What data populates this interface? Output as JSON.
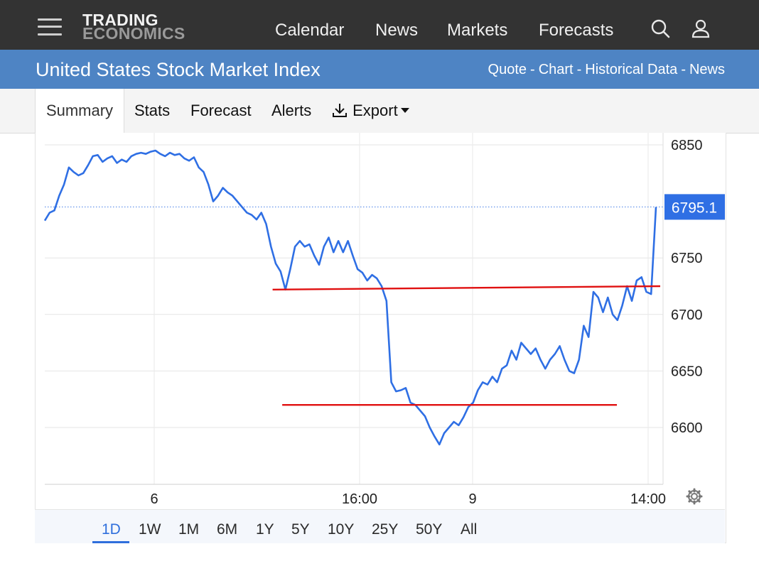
{
  "header": {
    "logo_line1": "TRADING",
    "logo_line2": "ECONOMICS",
    "nav": [
      "Calendar",
      "News",
      "Markets",
      "Forecasts"
    ],
    "icons": [
      "menu-icon",
      "search-icon",
      "user-icon"
    ]
  },
  "title_bar": {
    "title": "United States Stock Market Index",
    "links": [
      "Quote",
      "Chart",
      "Historical Data",
      "News"
    ],
    "link_separator": "-"
  },
  "tabs": {
    "items": [
      "Summary",
      "Stats",
      "Forecast",
      "Alerts",
      "Export"
    ],
    "active": "Summary"
  },
  "ranges": {
    "items": [
      "1D",
      "1W",
      "1M",
      "6M",
      "1Y",
      "5Y",
      "10Y",
      "25Y",
      "50Y",
      "All"
    ],
    "active": "1D"
  },
  "colors": {
    "topbar": "#333333",
    "titlebar": "#4e84c4",
    "line": "#2f6fe4",
    "last_price_badge": "#2f6fe4",
    "trend_lines": "#e01010",
    "active_range": "#2f6fdc"
  },
  "chart_data": {
    "type": "line",
    "title": "",
    "xlabel": "",
    "ylabel": "",
    "x_ticks": [
      "6",
      "16:00",
      "9",
      "14:00"
    ],
    "y_ticks": [
      6600,
      6650,
      6700,
      6750,
      6850
    ],
    "ylim": [
      6550,
      6850
    ],
    "y_axis_side": "right",
    "grid": true,
    "last_value_label": "6795.1",
    "last_value": 6795.1,
    "series": [
      {
        "values": [
          6783,
          6790,
          6792,
          6805,
          6815,
          6830,
          6826,
          6823,
          6825,
          6832,
          6840,
          6841,
          6835,
          6838,
          6840,
          6834,
          6837,
          6835,
          6840,
          6842,
          6843,
          6842,
          6844,
          6845,
          6842,
          6840,
          6843,
          6841,
          6842,
          6838,
          6836,
          6839,
          6830,
          6826,
          6815,
          6800,
          6805,
          6812,
          6808,
          6805,
          6800,
          6795,
          6790,
          6788,
          6784,
          6790,
          6780,
          6760,
          6745,
          6738,
          6722,
          6740,
          6760,
          6765,
          6760,
          6762,
          6752,
          6744,
          6760,
          6768,
          6755,
          6765,
          6755,
          6765,
          6752,
          6740,
          6737,
          6730,
          6735,
          6732,
          6725,
          6712,
          6640,
          6632,
          6633,
          6635,
          6622,
          6620,
          6615,
          6610,
          6600,
          6592,
          6585,
          6595,
          6600,
          6605,
          6602,
          6609,
          6618,
          6622,
          6633,
          6640,
          6638,
          6645,
          6640,
          6652,
          6655,
          6668,
          6660,
          6675,
          6670,
          6665,
          6670,
          6660,
          6652,
          6660,
          6665,
          6672,
          6660,
          6650,
          6648,
          6660,
          6690,
          6680,
          6720,
          6715,
          6702,
          6715,
          6700,
          6695,
          6708,
          6725,
          6712,
          6730,
          6733,
          6720,
          6718,
          6795
        ],
        "last": 6795.1
      }
    ],
    "annotations": [
      {
        "type": "trend_line",
        "from": {
          "x_index": 50,
          "y": 6722
        },
        "to": {
          "x_index": 127,
          "y": 6725
        }
      },
      {
        "type": "horizontal_line",
        "from": {
          "x_index": 52,
          "y": 6620
        },
        "to": {
          "x_index": 118,
          "y": 6620
        }
      },
      {
        "type": "reference_line",
        "y": 6795.1,
        "style": "dotted"
      }
    ]
  }
}
